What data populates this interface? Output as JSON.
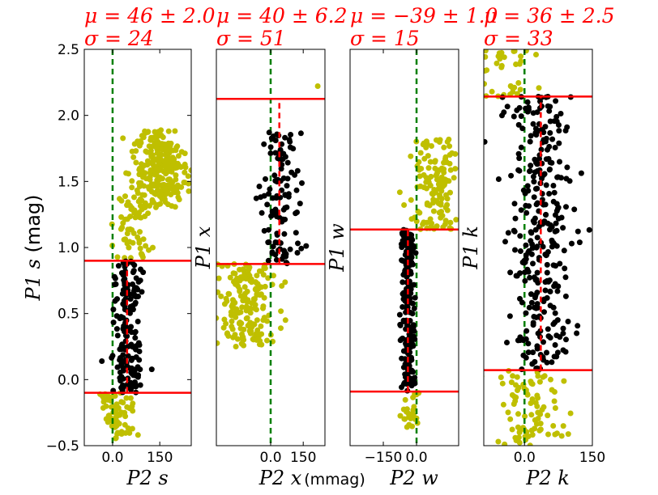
{
  "chart_data": [
    {
      "type": "scatter",
      "stat_mu": "μ = 46 ± 2.0",
      "stat_sigma": "σ = 24",
      "xlabel": "P2 s",
      "ylabel": "P1 s",
      "ylabel_unit": "(mag)",
      "xlim": [
        -90,
        250
      ],
      "ylim": [
        -0.5,
        2.5
      ],
      "xticks": [
        0,
        150
      ],
      "yticks": [
        -0.5,
        0.0,
        0.5,
        1.0,
        1.5,
        2.0,
        2.5
      ],
      "cut_lines_y": [
        -0.1,
        0.9
      ],
      "zero_line_x": 0,
      "mean_line": {
        "x": 46,
        "y_range": [
          -0.1,
          0.9
        ]
      },
      "black_points": {
        "x_center": 46,
        "x_sigma": 24,
        "y_range": [
          -0.1,
          0.9
        ],
        "count": 170
      },
      "yellow_points": [
        {
          "x_center": 20,
          "x_sigma": 30,
          "y_range": [
            -0.45,
            -0.1
          ],
          "count": 70
        },
        {
          "x_center": 60,
          "x_sigma": 35,
          "y_range": [
            0.9,
            1.4
          ],
          "count": 60
        },
        {
          "x_center": 130,
          "x_sigma": 40,
          "y_range": [
            1.3,
            1.9
          ],
          "count": 140
        },
        {
          "x_center": 180,
          "x_sigma": 30,
          "y_range": [
            1.4,
            1.8
          ],
          "count": 120
        }
      ]
    },
    {
      "type": "scatter",
      "stat_mu": "μ = 40 ± 6.2",
      "stat_sigma": "σ = 51",
      "xlabel": "P2 x",
      "ylabel": "P1 x",
      "xlim": [
        -250,
        250
      ],
      "ylim": [
        -0.6,
        1.8
      ],
      "xticks": [
        0,
        150
      ],
      "cut_lines_y": [
        0.5,
        1.5
      ],
      "zero_line_x": 0,
      "mean_line": {
        "x": 40,
        "y_range": [
          0.5,
          1.5
        ]
      },
      "black_points": {
        "x_center": 40,
        "x_sigma": 51,
        "y_range": [
          0.5,
          1.3
        ],
        "count": 110
      },
      "yellow_points": [
        {
          "x_center": -120,
          "x_sigma": 70,
          "y_range": [
            0.0,
            0.5
          ],
          "count": 180
        },
        {
          "x_center": 200,
          "x_sigma": 10,
          "y_range": [
            1.55,
            1.6
          ],
          "count": 1
        }
      ]
    },
    {
      "type": "scatter",
      "stat_mu": "μ = −39 ± 1.0",
      "stat_sigma": "σ = 15",
      "xlabel": "P2 w",
      "ylabel": "P1 w",
      "xlim": [
        -300,
        190
      ],
      "ylim": [
        -0.4,
        1.8
      ],
      "xticks": [
        -150,
        0
      ],
      "cut_lines_y": [
        -0.1,
        0.8
      ],
      "zero_line_x": 0,
      "mean_line": {
        "x": -39,
        "y_range": [
          -0.1,
          0.8
        ]
      },
      "black_points": {
        "x_center": -39,
        "x_sigma": 15,
        "y_range": [
          -0.1,
          0.8
        ],
        "count": 230
      },
      "yellow_points": [
        {
          "x_center": -20,
          "x_sigma": 25,
          "y_range": [
            -0.3,
            -0.1
          ],
          "count": 25
        },
        {
          "x_center": 80,
          "x_sigma": 55,
          "y_range": [
            0.8,
            1.3
          ],
          "count": 130
        }
      ]
    },
    {
      "type": "scatter",
      "stat_mu": "μ = 36 ± 2.5",
      "stat_sigma": "σ = 33",
      "xlabel": "P2 k",
      "ylabel": "P1 k",
      "xlim": [
        -90,
        150
      ],
      "ylim": [
        -0.4,
        1.7
      ],
      "xticks": [
        0,
        150
      ],
      "cut_lines_y": [
        0.0,
        1.45
      ],
      "zero_line_x": 0,
      "mean_line": {
        "x": 36,
        "y_range": [
          0.0,
          1.45
        ]
      },
      "black_points": {
        "x_center": 36,
        "x_sigma": 33,
        "y_range": [
          0.0,
          1.45
        ],
        "count": 320
      },
      "yellow_points": [
        {
          "x_center": 10,
          "x_sigma": 35,
          "y_range": [
            -0.4,
            0.0
          ],
          "count": 90
        },
        {
          "x_center": -40,
          "x_sigma": 40,
          "y_range": [
            1.45,
            1.7
          ],
          "count": 40
        }
      ]
    }
  ],
  "shared_xlabel_unit": "(mmag)",
  "colors": {
    "black_points": "#000000",
    "yellow_points": "#bfbf00",
    "cut_lines": "#ff0000",
    "mean_line": "#ff0000",
    "zero_line": "#007f00",
    "stat_text": "#ff0000"
  }
}
